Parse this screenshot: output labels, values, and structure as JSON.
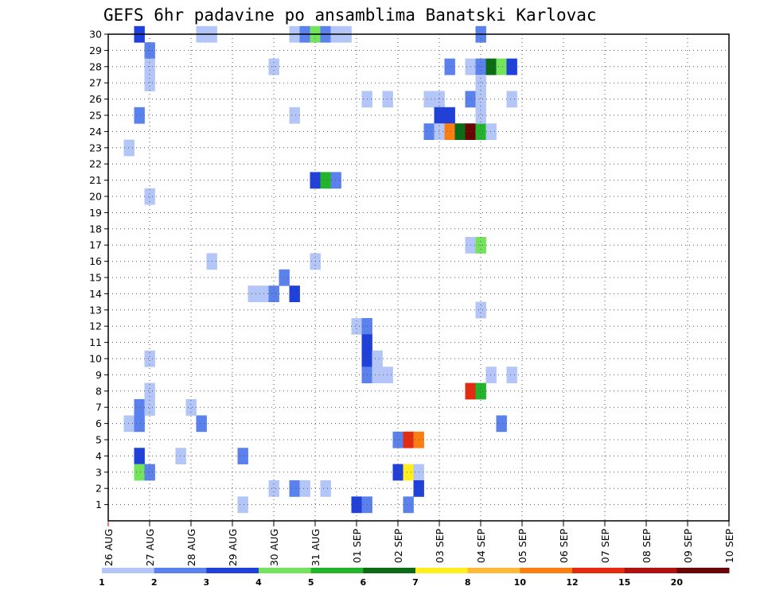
{
  "chart_data": {
    "type": "heatmap",
    "title": "GEFS 6hr padavine po ansamblima Banatski Karlovac",
    "x_tick_labels": [
      "26 AUG",
      "27 AUG",
      "28 AUG",
      "29 AUG",
      "30 AUG",
      "31 AUG",
      "01 SEP",
      "02 SEP",
      "03 SEP",
      "04 SEP",
      "05 SEP",
      "06 SEP",
      "07 SEP",
      "08 SEP",
      "09 SEP",
      "10 SEP"
    ],
    "y_tick_labels": [
      "1",
      "2",
      "3",
      "4",
      "5",
      "6",
      "7",
      "8",
      "9",
      "10",
      "11",
      "12",
      "13",
      "14",
      "15",
      "16",
      "17",
      "18",
      "19",
      "20",
      "21",
      "22",
      "23",
      "24",
      "25",
      "26",
      "27",
      "28",
      "29",
      "30"
    ],
    "x_unit": "6-hour step from 26 AUG 00",
    "xlim": [
      0,
      60
    ],
    "ylim": [
      0,
      30
    ],
    "grid": true,
    "colorbar": {
      "labels": [
        "1",
        "2",
        "3",
        "4",
        "5",
        "6",
        "7",
        "8",
        "10",
        "12",
        "15",
        "20"
      ],
      "colors": [
        "#b3c6f7",
        "#5b82ec",
        "#1f40d9",
        "#73e35b",
        "#22b42b",
        "#0d6b17",
        "#fff01d",
        "#fdb937",
        "#fb7e13",
        "#e42b12",
        "#b2120f",
        "#6b0505"
      ]
    },
    "cells": [
      [
        3,
        30,
        2
      ],
      [
        4,
        29,
        1
      ],
      [
        4,
        28,
        0
      ],
      [
        4,
        27,
        0
      ],
      [
        3,
        25,
        1
      ],
      [
        2,
        23,
        0
      ],
      [
        4,
        20,
        0
      ],
      [
        4,
        10,
        0
      ],
      [
        4,
        8,
        0
      ],
      [
        3,
        7,
        1
      ],
      [
        4,
        7,
        0
      ],
      [
        2,
        6,
        0
      ],
      [
        3,
        6,
        1
      ],
      [
        3,
        4,
        2
      ],
      [
        3,
        3,
        3
      ],
      [
        4,
        3,
        1
      ],
      [
        9,
        30,
        0
      ],
      [
        10,
        30,
        0
      ],
      [
        8,
        7,
        0
      ],
      [
        9,
        6,
        1
      ],
      [
        10,
        16,
        0
      ],
      [
        7,
        4,
        0
      ],
      [
        13,
        1,
        0
      ],
      [
        14,
        14,
        0
      ],
      [
        13,
        4,
        1
      ],
      [
        15,
        14,
        0
      ],
      [
        16,
        14,
        1
      ],
      [
        16,
        2,
        0
      ],
      [
        16,
        28,
        0
      ],
      [
        18,
        30,
        0
      ],
      [
        19,
        30,
        1
      ],
      [
        20,
        30,
        3
      ],
      [
        21,
        30,
        1
      ],
      [
        22,
        30,
        0
      ],
      [
        23,
        30,
        0
      ],
      [
        18,
        25,
        0
      ],
      [
        17,
        15,
        1
      ],
      [
        18,
        14,
        2
      ],
      [
        18,
        2,
        1
      ],
      [
        19,
        2,
        0
      ],
      [
        20,
        21,
        2
      ],
      [
        21,
        21,
        4
      ],
      [
        20,
        16,
        0
      ],
      [
        21,
        2,
        0
      ],
      [
        22,
        21,
        1
      ],
      [
        25,
        26,
        0
      ],
      [
        27,
        26,
        0
      ],
      [
        24,
        12,
        0
      ],
      [
        25,
        12,
        1
      ],
      [
        25,
        11,
        2
      ],
      [
        25,
        10,
        2
      ],
      [
        26,
        10,
        0
      ],
      [
        25,
        9,
        1
      ],
      [
        26,
        9,
        0
      ],
      [
        27,
        9,
        0
      ],
      [
        24,
        1,
        2
      ],
      [
        25,
        1,
        1
      ],
      [
        28,
        5,
        1
      ],
      [
        29,
        5,
        9
      ],
      [
        30,
        5,
        8
      ],
      [
        28,
        3,
        2
      ],
      [
        29,
        3,
        6
      ],
      [
        30,
        3,
        0
      ],
      [
        30,
        2,
        2
      ],
      [
        29,
        1,
        1
      ],
      [
        31,
        26,
        0
      ],
      [
        32,
        26,
        0
      ],
      [
        32,
        25,
        2
      ],
      [
        33,
        25,
        2
      ],
      [
        31,
        24,
        1
      ],
      [
        32,
        24,
        0
      ],
      [
        33,
        24,
        8
      ],
      [
        34,
        24,
        5
      ],
      [
        35,
        24,
        11
      ],
      [
        36,
        24,
        4
      ],
      [
        37,
        24,
        0
      ],
      [
        33,
        28,
        1
      ],
      [
        35,
        28,
        0
      ],
      [
        36,
        28,
        1
      ],
      [
        37,
        28,
        5
      ],
      [
        38,
        28,
        3
      ],
      [
        39,
        28,
        2
      ],
      [
        36,
        30,
        1
      ],
      [
        35,
        26,
        1
      ],
      [
        36,
        26,
        0
      ],
      [
        36,
        27,
        0
      ],
      [
        36,
        25,
        0
      ],
      [
        39,
        26,
        0
      ],
      [
        35,
        17,
        0
      ],
      [
        36,
        17,
        3
      ],
      [
        36,
        13,
        0
      ],
      [
        37,
        9,
        0
      ],
      [
        39,
        9,
        0
      ],
      [
        35,
        8,
        9
      ],
      [
        36,
        8,
        4
      ],
      [
        38,
        6,
        1
      ]
    ]
  }
}
